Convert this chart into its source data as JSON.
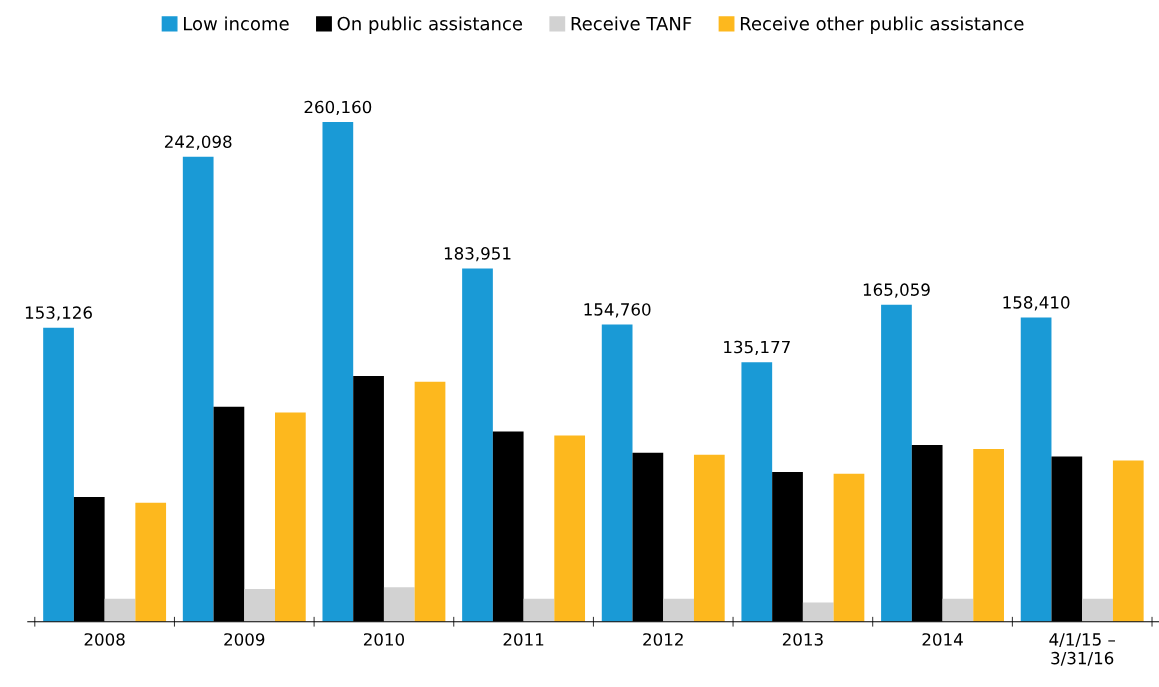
{
  "chart_data": {
    "type": "bar",
    "categories": [
      "2008",
      "2009",
      "2010",
      "2011",
      "2012",
      "2013",
      "2014",
      "4/1/15 –\n3/31/16"
    ],
    "series": [
      {
        "name": "Low income",
        "color": "#1a9ad6",
        "values": [
          153126,
          242098,
          260160,
          183951,
          154760,
          135177,
          165059,
          158410
        ],
        "value_labels": [
          "153,126",
          "242,098",
          "260,160",
          "183,951",
          "154,760",
          "135,177",
          "165,059",
          "158,410"
        ]
      },
      {
        "name": "On public assistance",
        "color": "#000000",
        "values": [
          65000,
          112000,
          128000,
          99000,
          88000,
          78000,
          92000,
          86000
        ]
      },
      {
        "name": "Receive TANF",
        "color": "#d2d2d2",
        "values": [
          12000,
          17000,
          18000,
          12000,
          12000,
          10000,
          12000,
          12000
        ]
      },
      {
        "name": "Receive other public assistance",
        "color": "#fdb81e",
        "values": [
          62000,
          109000,
          125000,
          97000,
          87000,
          77000,
          90000,
          84000
        ]
      }
    ],
    "legend": "top",
    "grid": false,
    "tick_labels": "x"
  }
}
